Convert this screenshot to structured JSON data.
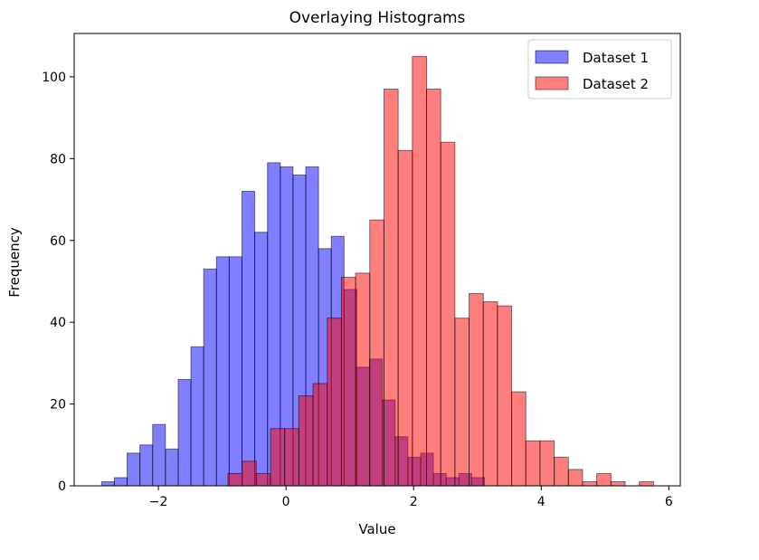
{
  "chart_data": {
    "type": "histogram",
    "title": "Overlaying Histograms",
    "xlabel": "Value",
    "ylabel": "Frequency",
    "xlim": [
      -3.32,
      6.18
    ],
    "ylim": [
      0,
      110.6
    ],
    "xticks": [
      -2,
      0,
      2,
      4,
      6
    ],
    "xtick_labels": [
      "−2",
      "0",
      "2",
      "4",
      "6"
    ],
    "yticks": [
      0,
      20,
      40,
      60,
      80,
      100
    ],
    "ytick_labels": [
      "0",
      "20",
      "40",
      "60",
      "80",
      "100"
    ],
    "grid": false,
    "legend_position": "top-right",
    "series": [
      {
        "name": "Dataset 1",
        "color": "#0000ff",
        "alpha": 0.5,
        "bin_start": -2.89,
        "bin_end": 3.11,
        "counts": [
          1,
          2,
          8,
          10,
          15,
          9,
          26,
          34,
          53,
          56,
          56,
          72,
          62,
          79,
          78,
          76,
          78,
          58,
          61,
          48,
          29,
          31,
          21,
          12,
          7,
          8,
          3,
          2,
          3,
          2
        ]
      },
      {
        "name": "Dataset 2",
        "color": "#ff0000",
        "alpha": 0.5,
        "bin_start": -0.91,
        "bin_end": 5.76,
        "counts": [
          3,
          6,
          3,
          14,
          14,
          22,
          25,
          41,
          51,
          52,
          65,
          97,
          82,
          105,
          97,
          84,
          41,
          47,
          45,
          44,
          23,
          11,
          11,
          7,
          4,
          1,
          3,
          1,
          0,
          1
        ]
      }
    ]
  }
}
